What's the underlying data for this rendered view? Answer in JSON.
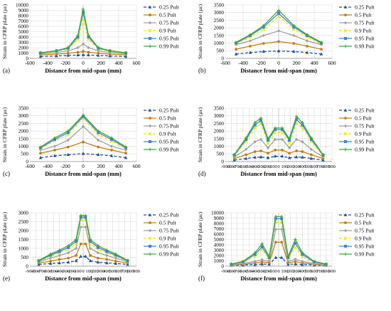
{
  "series_styles": [
    {
      "name": "0.25 Pult",
      "color": "#1f4e9c",
      "dash": "4,2.5",
      "marker": "triangle"
    },
    {
      "name": "0.5 Pult",
      "color": "#c07d1a",
      "dash": "",
      "marker": "circle"
    },
    {
      "name": "0.75 Pult",
      "color": "#a0a0a0",
      "dash": "",
      "marker": "diamond"
    },
    {
      "name": "0.9 Pult",
      "color": "#e6e600",
      "dash": "4,2.5",
      "marker": "cross"
    },
    {
      "name": "0.95 Pult",
      "color": "#3f7fd6",
      "dash": "",
      "marker": "square"
    },
    {
      "name": "0.99 Pult",
      "color": "#3aa83a",
      "dash": "",
      "marker": "plus"
    }
  ],
  "chart_data": [
    {
      "type": "line",
      "panel_label": "(a)",
      "xlabel": "Distance from mid-span (mm)",
      "ylabel": "Strain in CFRP plate (µε)",
      "xlim": [
        -600,
        600
      ],
      "ylim": [
        0,
        10000
      ],
      "xticks": [
        -600,
        -400,
        -200,
        0,
        200,
        400,
        600
      ],
      "yticks": [
        0,
        1000,
        2000,
        3000,
        4000,
        5000,
        6000,
        7000,
        8000,
        9000,
        10000
      ],
      "grid": true,
      "legend": "right",
      "x": [
        -480,
        -300,
        -170,
        -60,
        0,
        60,
        170,
        300,
        480
      ],
      "series": [
        {
          "name": "0.25 Pult",
          "values": [
            350,
            450,
            550,
            620,
            650,
            620,
            550,
            450,
            350
          ]
        },
        {
          "name": "0.5 Pult",
          "values": [
            650,
            800,
            950,
            1150,
            1300,
            1150,
            950,
            800,
            650
          ]
        },
        {
          "name": "0.75 Pult",
          "values": [
            850,
            1100,
            1400,
            2000,
            2700,
            2000,
            1400,
            1100,
            850
          ]
        },
        {
          "name": "0.9 Pult",
          "values": [
            950,
            1300,
            1800,
            3500,
            7200,
            3500,
            1800,
            1300,
            950
          ]
        },
        {
          "name": "0.95 Pult",
          "values": [
            1000,
            1400,
            1900,
            4000,
            8700,
            4000,
            1900,
            1400,
            1000
          ]
        },
        {
          "name": "0.99 Pult",
          "values": [
            1050,
            1450,
            2000,
            4300,
            9200,
            4300,
            2000,
            1450,
            1050
          ]
        }
      ]
    },
    {
      "type": "line",
      "panel_label": "(b)",
      "xlabel": "Distance from mid-span (mm)",
      "ylabel": "Strain in CFRP plate (µε)",
      "xlim": [
        -600,
        600
      ],
      "ylim": [
        0,
        3500
      ],
      "xticks": [
        -600,
        -400,
        -200,
        0,
        200,
        400,
        600
      ],
      "yticks": [
        0,
        500,
        1000,
        1500,
        2000,
        2500,
        3000,
        3500
      ],
      "grid": true,
      "legend": "right",
      "x": [
        -480,
        -320,
        -170,
        0,
        170,
        320,
        480
      ],
      "series": [
        {
          "name": "0.25 Pult",
          "values": [
            280,
            380,
            450,
            480,
            450,
            380,
            280
          ]
        },
        {
          "name": "0.5 Pult",
          "values": [
            600,
            800,
            980,
            1100,
            980,
            800,
            600
          ]
        },
        {
          "name": "0.75 Pult",
          "values": [
            900,
            1150,
            1500,
            1800,
            1500,
            1150,
            900
          ]
        },
        {
          "name": "0.9 Pult",
          "values": [
            950,
            1400,
            1900,
            2750,
            1900,
            1400,
            950
          ]
        },
        {
          "name": "0.95 Pult",
          "values": [
            1000,
            1500,
            2050,
            2950,
            2050,
            1500,
            1000
          ]
        },
        {
          "name": "0.99 Pult",
          "values": [
            1050,
            1550,
            2150,
            3150,
            2150,
            1550,
            1050
          ]
        }
      ]
    },
    {
      "type": "line",
      "panel_label": "(c)",
      "xlabel": "Distance from mid-span (mm)",
      "ylabel": "Strain in CFRP plate (µε)",
      "xlim": [
        -600,
        600
      ],
      "ylim": [
        0,
        3500
      ],
      "xticks": [
        -600,
        -400,
        -200,
        0,
        200,
        400,
        600
      ],
      "yticks": [
        0,
        500,
        1000,
        1500,
        2000,
        2500,
        3000,
        3500
      ],
      "grid": true,
      "legend": "right",
      "x": [
        -480,
        -320,
        -170,
        0,
        170,
        320,
        480
      ],
      "series": [
        {
          "name": "0.25 Pult",
          "values": [
            250,
            380,
            450,
            520,
            450,
            380,
            250
          ]
        },
        {
          "name": "0.5 Pult",
          "values": [
            550,
            750,
            950,
            1280,
            950,
            750,
            550
          ]
        },
        {
          "name": "0.75 Pult",
          "values": [
            750,
            1000,
            1400,
            2300,
            1400,
            1000,
            750
          ]
        },
        {
          "name": "0.9 Pult",
          "values": [
            850,
            1350,
            1750,
            2850,
            1750,
            1350,
            850
          ]
        },
        {
          "name": "0.95 Pult",
          "values": [
            900,
            1450,
            1900,
            2950,
            1900,
            1450,
            900
          ]
        },
        {
          "name": "0.99 Pult",
          "values": [
            950,
            1550,
            2000,
            3050,
            2000,
            1550,
            950
          ]
        }
      ]
    },
    {
      "type": "line",
      "panel_label": "(d)",
      "xlabel": "Distance from mid-span (mm)",
      "ylabel": "Strain in CFRP plate (µε)",
      "xlim": [
        -900,
        900
      ],
      "ylim": [
        0,
        3500
      ],
      "xticks": [
        -900,
        -800,
        -700,
        -600,
        -500,
        -400,
        -300,
        -200,
        -100,
        0,
        100,
        200,
        300,
        400,
        500,
        600,
        700,
        800,
        900
      ],
      "yticks": [
        0,
        500,
        1000,
        1500,
        2000,
        2500,
        3000,
        3500
      ],
      "grid": true,
      "legend": "right",
      "x": [
        -750,
        -550,
        -400,
        -300,
        -180,
        -60,
        60,
        180,
        300,
        400,
        550,
        750
      ],
      "series": [
        {
          "name": "0.25 Pult",
          "values": [
            100,
            200,
            280,
            300,
            250,
            350,
            350,
            250,
            300,
            280,
            200,
            100
          ]
        },
        {
          "name": "0.5 Pult",
          "values": [
            200,
            450,
            650,
            700,
            550,
            750,
            750,
            550,
            700,
            650,
            450,
            200
          ]
        },
        {
          "name": "0.75 Pult",
          "values": [
            300,
            800,
            1300,
            1450,
            900,
            1450,
            1450,
            900,
            1450,
            1300,
            800,
            300
          ]
        },
        {
          "name": "0.9 Pult",
          "values": [
            380,
            1300,
            2200,
            2500,
            1200,
            1900,
            1900,
            1200,
            2500,
            2200,
            1300,
            380
          ]
        },
        {
          "name": "0.95 Pult",
          "values": [
            420,
            1450,
            2400,
            2700,
            1400,
            2100,
            2100,
            1400,
            2750,
            2400,
            1450,
            420
          ]
        },
        {
          "name": "0.99 Pult",
          "values": [
            450,
            1550,
            2550,
            2850,
            1500,
            2200,
            2200,
            1500,
            2950,
            2550,
            1550,
            450
          ]
        }
      ]
    },
    {
      "type": "line",
      "panel_label": "(e)",
      "xlabel": "Distance from mid-span (mm)",
      "ylabel": "Strain in CFRP plate (µε)",
      "xlim": [
        -900,
        900
      ],
      "ylim": [
        0,
        3000
      ],
      "xticks": [
        -900,
        -800,
        -700,
        -600,
        -500,
        -400,
        -300,
        -200,
        -100,
        0,
        100,
        200,
        300,
        400,
        500,
        600,
        700,
        800,
        900
      ],
      "yticks": [
        0,
        500,
        1000,
        1500,
        2000,
        2500,
        3000
      ],
      "grid": true,
      "legend": "right",
      "x": [
        -750,
        -550,
        -400,
        -250,
        -120,
        -40,
        40,
        120,
        250,
        400,
        550,
        750
      ],
      "series": [
        {
          "name": "0.25 Pult",
          "values": [
            100,
            150,
            180,
            220,
            300,
            550,
            550,
            300,
            220,
            180,
            150,
            100
          ]
        },
        {
          "name": "0.5 Pult",
          "values": [
            180,
            280,
            380,
            450,
            600,
            1250,
            1250,
            600,
            450,
            380,
            280,
            180
          ]
        },
        {
          "name": "0.75 Pult",
          "values": [
            250,
            450,
            600,
            750,
            1000,
            2200,
            2200,
            1000,
            750,
            600,
            450,
            250
          ]
        },
        {
          "name": "0.9 Pult",
          "values": [
            280,
            550,
            750,
            950,
            1250,
            2600,
            2600,
            1250,
            950,
            750,
            550,
            280
          ]
        },
        {
          "name": "0.95 Pult",
          "values": [
            300,
            620,
            820,
            1050,
            1400,
            2750,
            2750,
            1400,
            1050,
            820,
            620,
            300
          ]
        },
        {
          "name": "0.99 Pult",
          "values": [
            320,
            680,
            900,
            1150,
            1500,
            2850,
            2850,
            1500,
            1150,
            900,
            680,
            320
          ]
        }
      ]
    },
    {
      "type": "line",
      "panel_label": "(f)",
      "xlabel": "Distance from mid-span (mm)",
      "ylabel": "Strain in CFRP plate (µε)",
      "xlim": [
        -900,
        900
      ],
      "ylim": [
        0,
        10000
      ],
      "xticks": [
        -900,
        -800,
        -700,
        -600,
        -500,
        -400,
        -300,
        -200,
        -100,
        0,
        100,
        200,
        300,
        400,
        500,
        600,
        700,
        800,
        900
      ],
      "yticks": [
        0,
        1000,
        2000,
        3000,
        4000,
        5000,
        6000,
        7000,
        8000,
        9000,
        10000
      ],
      "grid": true,
      "legend": "right",
      "x": [
        -800,
        -600,
        -400,
        -280,
        -160,
        -50,
        50,
        160,
        280,
        400,
        600,
        800
      ],
      "series": [
        {
          "name": "0.25 Pult",
          "values": [
            150,
            200,
            300,
            400,
            350,
            1600,
            1600,
            350,
            400,
            300,
            200,
            150
          ]
        },
        {
          "name": "0.5 Pult",
          "values": [
            200,
            350,
            600,
            800,
            650,
            4500,
            4500,
            650,
            850,
            600,
            350,
            200
          ]
        },
        {
          "name": "0.75 Pult",
          "values": [
            250,
            500,
            900,
            1200,
            900,
            6900,
            6900,
            900,
            1300,
            900,
            500,
            250
          ]
        },
        {
          "name": "0.9 Pult",
          "values": [
            300,
            700,
            1800,
            3100,
            1400,
            8200,
            8200,
            1400,
            3500,
            1800,
            700,
            300
          ]
        },
        {
          "name": "0.95 Pult",
          "values": [
            350,
            800,
            2200,
            3600,
            1600,
            8900,
            8900,
            1600,
            4300,
            2200,
            800,
            350
          ]
        },
        {
          "name": "0.99 Pult",
          "values": [
            400,
            900,
            2500,
            4200,
            1800,
            9300,
            9300,
            1800,
            5000,
            2500,
            900,
            400
          ]
        }
      ]
    }
  ]
}
